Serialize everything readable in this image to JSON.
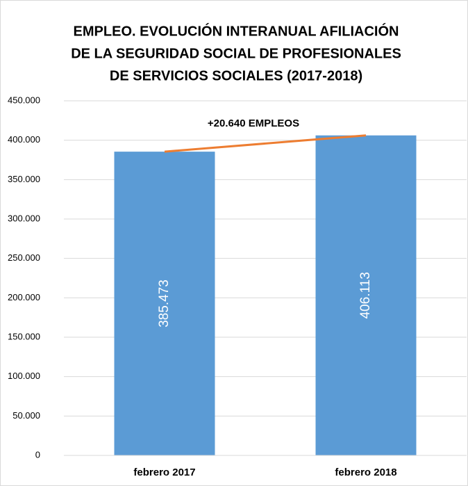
{
  "chart_data": {
    "type": "bar",
    "title": [
      "EMPLEO. EVOLUCIÓN INTERANUAL AFILIACIÓN",
      "DE LA SEGURIDAD SOCIAL DE PROFESIONALES",
      "DE SERVICIOS SOCIALES (2017-2018)"
    ],
    "annotation": "+20.640 EMPLEOS",
    "categories": [
      "febrero 2017",
      "febrero 2018"
    ],
    "values": [
      385473,
      406113
    ],
    "value_labels": [
      "385.473",
      "406.113"
    ],
    "color": "#5b9bd5",
    "trend_line_color": "#ed7d31",
    "ylim": [
      0,
      450000
    ],
    "yticks": [
      0,
      {
        "value": 50000,
        "label": "50.000"
      },
      {
        "value": 100000,
        "label": "100.000"
      },
      {
        "value": 150000,
        "label": "150.000"
      },
      {
        "value": 200000,
        "label": "200.000"
      },
      {
        "value": 250000,
        "label": "250.000"
      },
      {
        "value": 300000,
        "label": "300.000"
      },
      {
        "value": 350000,
        "label": "350.000"
      },
      {
        "value": 400000,
        "label": "400.000"
      },
      {
        "value": 450000,
        "label": "450.000"
      }
    ],
    "grid": true
  }
}
